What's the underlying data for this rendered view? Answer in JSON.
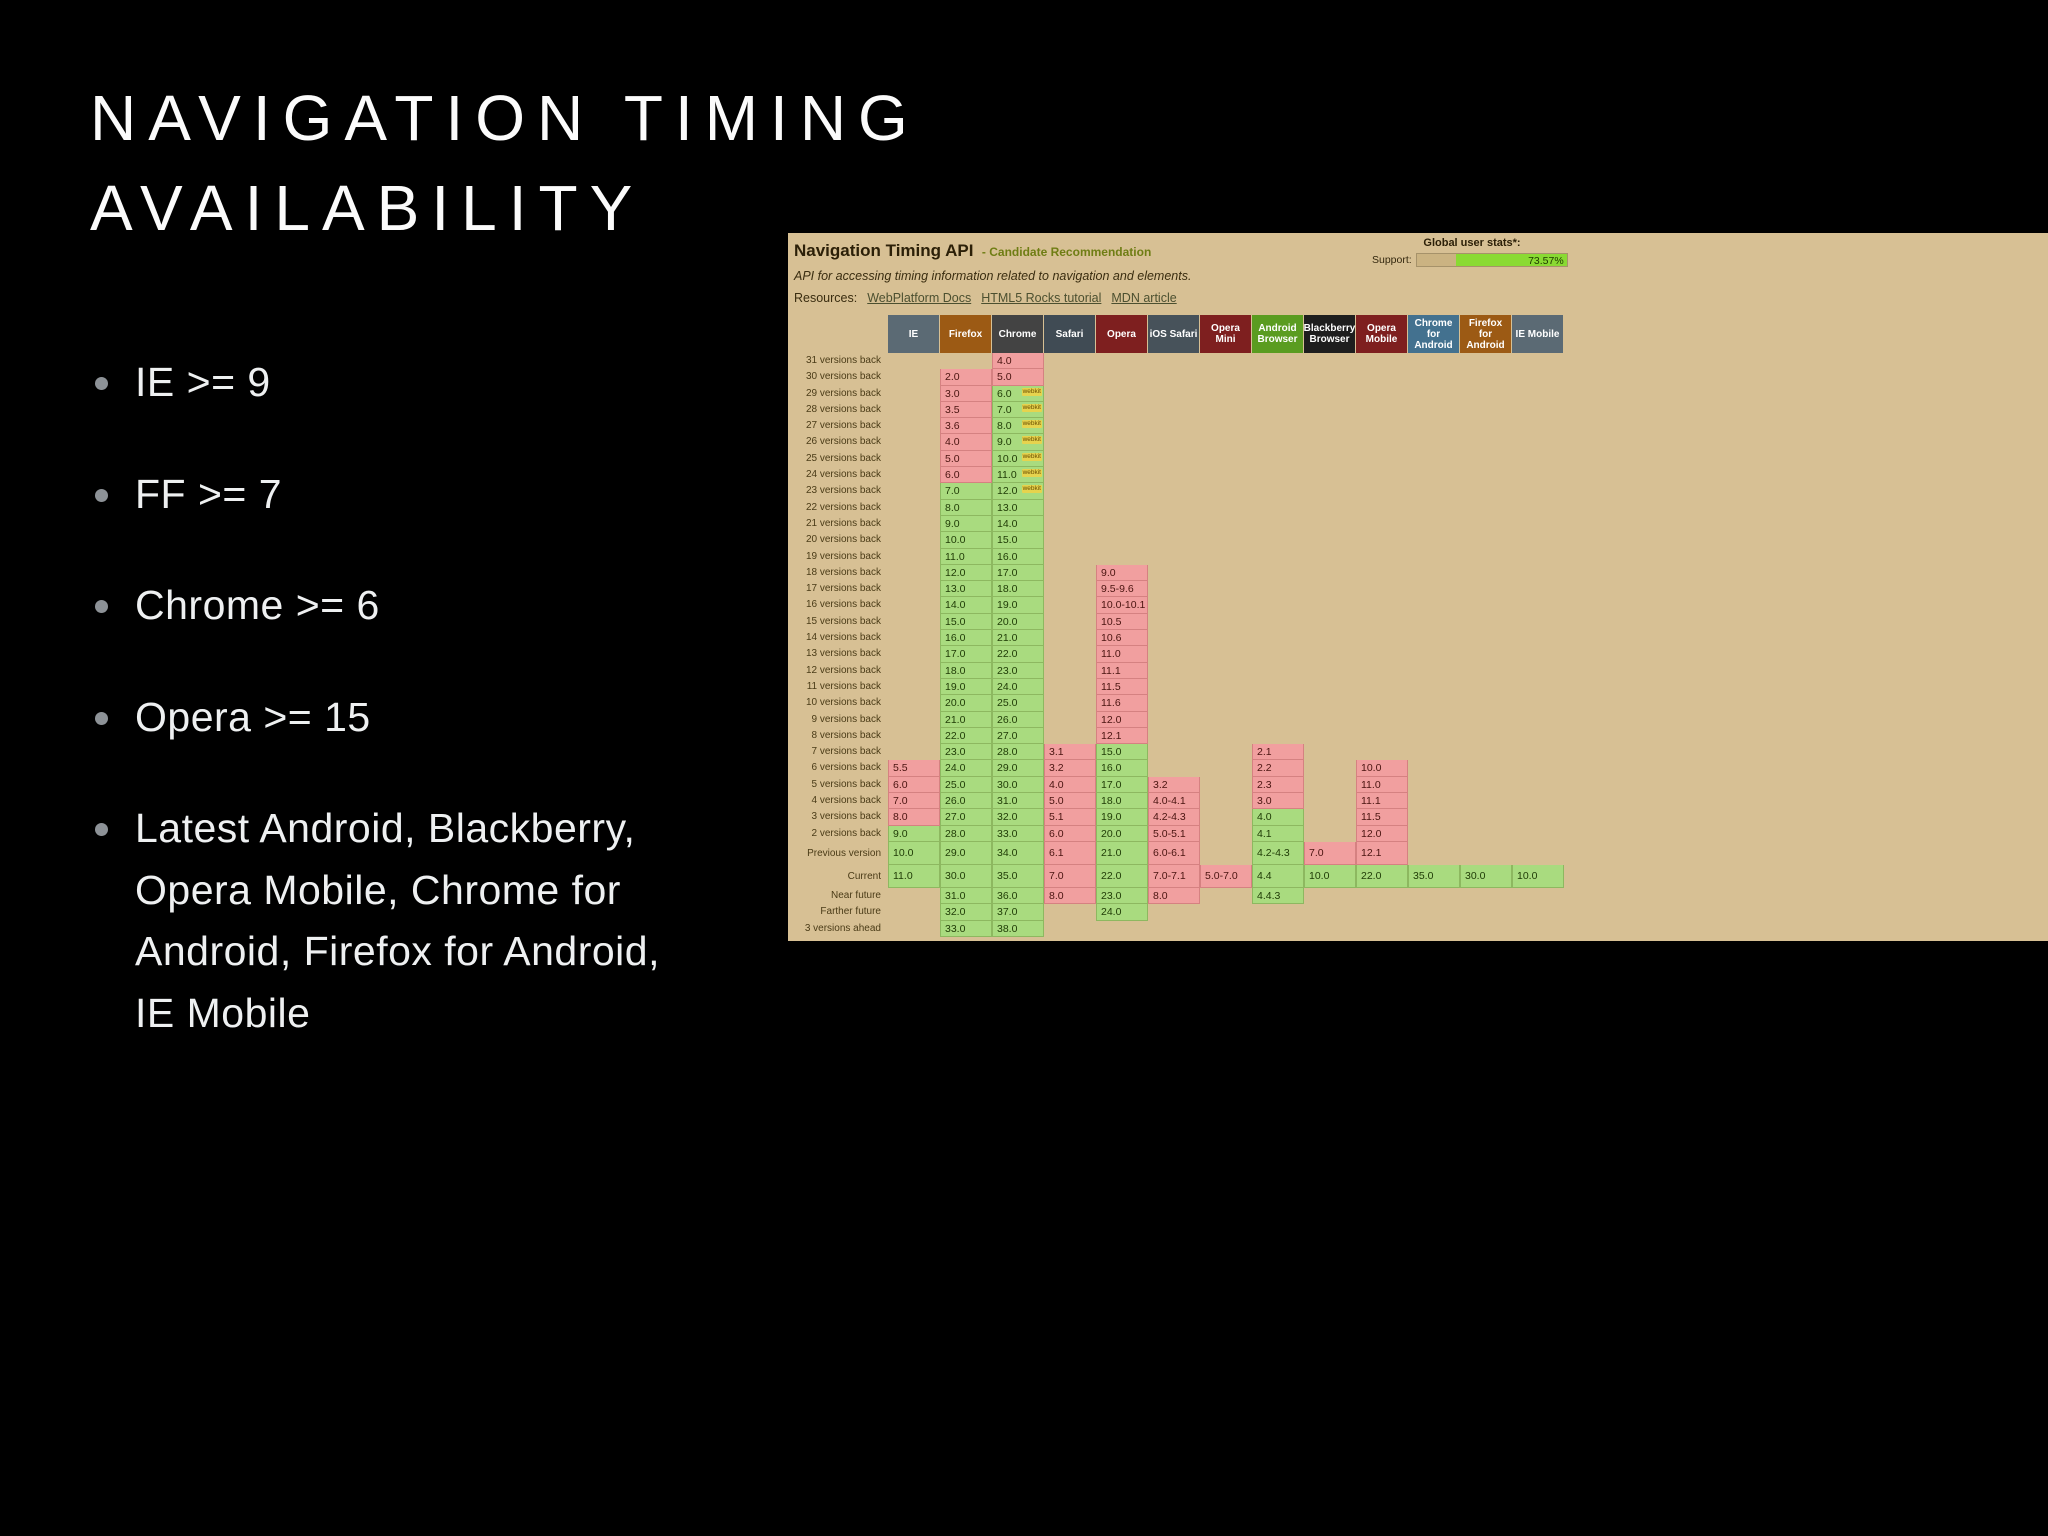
{
  "slide": {
    "title": "NAVIGATION TIMING AVAILABILITY",
    "bullets": [
      "IE >= 9",
      "FF >= 7",
      "Chrome >= 6",
      "Opera >= 15",
      "Latest Android, Blackberry, Opera Mobile, Chrome for Android, Firefox for Android, IE Mobile"
    ]
  },
  "caniuse": {
    "title": "Navigation Timing API",
    "status": "- Candidate Recommendation",
    "description": "API for accessing timing information related to navigation and elements.",
    "resources_label": "Resources:",
    "resources": [
      "WebPlatform Docs",
      "HTML5 Rocks tutorial",
      "MDN article"
    ],
    "stats": {
      "label": "Global user stats*:",
      "support_label": "Support:",
      "support_value": "73.57%",
      "support_percent": 73.57
    },
    "colors": {
      "panel_bg": "#d7c094",
      "supported": "#a9db7f",
      "unsupported": "#f19f9f",
      "support_bar": "#8ada33"
    },
    "columns": [
      {
        "label": "IE",
        "color": "#5b6a74"
      },
      {
        "label": "Firefox",
        "color": "#9c5a14"
      },
      {
        "label": "Chrome",
        "color": "#434343"
      },
      {
        "label": "Safari",
        "color": "#404b54"
      },
      {
        "label": "Opera",
        "color": "#7e1f1f"
      },
      {
        "label": "iOS Safari",
        "color": "#47525a"
      },
      {
        "label": "Opera Mini",
        "color": "#7e1f1f"
      },
      {
        "label": "Android Browser",
        "color": "#5a9c20"
      },
      {
        "label": "Blackberry Browser",
        "color": "#1e1e1e"
      },
      {
        "label": "Opera Mobile",
        "color": "#7e1f1f"
      },
      {
        "label": "Chrome for Android",
        "color": "#43718f"
      },
      {
        "label": "Firefox for Android",
        "color": "#9c5a14"
      },
      {
        "label": "IE Mobile",
        "color": "#5b6a74"
      }
    ],
    "rows": [
      {
        "label": "31 versions back",
        "cells": [
          [
            2,
            "4.0",
            "n"
          ]
        ]
      },
      {
        "label": "30 versions back",
        "cells": [
          [
            1,
            "2.0",
            "n"
          ],
          [
            2,
            "5.0",
            "n"
          ]
        ]
      },
      {
        "label": "29 versions back",
        "cells": [
          [
            1,
            "3.0",
            "n"
          ],
          [
            2,
            "6.0",
            "y",
            "webkit"
          ]
        ]
      },
      {
        "label": "28 versions back",
        "cells": [
          [
            1,
            "3.5",
            "n"
          ],
          [
            2,
            "7.0",
            "y",
            "webkit"
          ]
        ]
      },
      {
        "label": "27 versions back",
        "cells": [
          [
            1,
            "3.6",
            "n"
          ],
          [
            2,
            "8.0",
            "y",
            "webkit"
          ]
        ]
      },
      {
        "label": "26 versions back",
        "cells": [
          [
            1,
            "4.0",
            "n"
          ],
          [
            2,
            "9.0",
            "y",
            "webkit"
          ]
        ]
      },
      {
        "label": "25 versions back",
        "cells": [
          [
            1,
            "5.0",
            "n"
          ],
          [
            2,
            "10.0",
            "y",
            "webkit"
          ]
        ]
      },
      {
        "label": "24 versions back",
        "cells": [
          [
            1,
            "6.0",
            "n"
          ],
          [
            2,
            "11.0",
            "y",
            "webkit"
          ]
        ]
      },
      {
        "label": "23 versions back",
        "cells": [
          [
            1,
            "7.0",
            "y"
          ],
          [
            2,
            "12.0",
            "y",
            "webkit"
          ]
        ]
      },
      {
        "label": "22 versions back",
        "cells": [
          [
            1,
            "8.0",
            "y"
          ],
          [
            2,
            "13.0",
            "y"
          ]
        ]
      },
      {
        "label": "21 versions back",
        "cells": [
          [
            1,
            "9.0",
            "y"
          ],
          [
            2,
            "14.0",
            "y"
          ]
        ]
      },
      {
        "label": "20 versions back",
        "cells": [
          [
            1,
            "10.0",
            "y"
          ],
          [
            2,
            "15.0",
            "y"
          ]
        ]
      },
      {
        "label": "19 versions back",
        "cells": [
          [
            1,
            "11.0",
            "y"
          ],
          [
            2,
            "16.0",
            "y"
          ]
        ]
      },
      {
        "label": "18 versions back",
        "cells": [
          [
            1,
            "12.0",
            "y"
          ],
          [
            2,
            "17.0",
            "y"
          ],
          [
            4,
            "9.0",
            "n"
          ]
        ]
      },
      {
        "label": "17 versions back",
        "cells": [
          [
            1,
            "13.0",
            "y"
          ],
          [
            2,
            "18.0",
            "y"
          ],
          [
            4,
            "9.5-9.6",
            "n"
          ]
        ]
      },
      {
        "label": "16 versions back",
        "cells": [
          [
            1,
            "14.0",
            "y"
          ],
          [
            2,
            "19.0",
            "y"
          ],
          [
            4,
            "10.0-10.1",
            "n"
          ]
        ]
      },
      {
        "label": "15 versions back",
        "cells": [
          [
            1,
            "15.0",
            "y"
          ],
          [
            2,
            "20.0",
            "y"
          ],
          [
            4,
            "10.5",
            "n"
          ]
        ]
      },
      {
        "label": "14 versions back",
        "cells": [
          [
            1,
            "16.0",
            "y"
          ],
          [
            2,
            "21.0",
            "y"
          ],
          [
            4,
            "10.6",
            "n"
          ]
        ]
      },
      {
        "label": "13 versions back",
        "cells": [
          [
            1,
            "17.0",
            "y"
          ],
          [
            2,
            "22.0",
            "y"
          ],
          [
            4,
            "11.0",
            "n"
          ]
        ]
      },
      {
        "label": "12 versions back",
        "cells": [
          [
            1,
            "18.0",
            "y"
          ],
          [
            2,
            "23.0",
            "y"
          ],
          [
            4,
            "11.1",
            "n"
          ]
        ]
      },
      {
        "label": "11 versions back",
        "cells": [
          [
            1,
            "19.0",
            "y"
          ],
          [
            2,
            "24.0",
            "y"
          ],
          [
            4,
            "11.5",
            "n"
          ]
        ]
      },
      {
        "label": "10 versions back",
        "cells": [
          [
            1,
            "20.0",
            "y"
          ],
          [
            2,
            "25.0",
            "y"
          ],
          [
            4,
            "11.6",
            "n"
          ]
        ]
      },
      {
        "label": "9 versions back",
        "cells": [
          [
            1,
            "21.0",
            "y"
          ],
          [
            2,
            "26.0",
            "y"
          ],
          [
            4,
            "12.0",
            "n"
          ]
        ]
      },
      {
        "label": "8 versions back",
        "cells": [
          [
            1,
            "22.0",
            "y"
          ],
          [
            2,
            "27.0",
            "y"
          ],
          [
            4,
            "12.1",
            "n"
          ]
        ]
      },
      {
        "label": "7 versions back",
        "cells": [
          [
            1,
            "23.0",
            "y"
          ],
          [
            2,
            "28.0",
            "y"
          ],
          [
            3,
            "3.1",
            "n"
          ],
          [
            4,
            "15.0",
            "y"
          ],
          [
            7,
            "2.1",
            "n"
          ]
        ]
      },
      {
        "label": "6 versions back",
        "cells": [
          [
            0,
            "5.5",
            "n"
          ],
          [
            1,
            "24.0",
            "y"
          ],
          [
            2,
            "29.0",
            "y"
          ],
          [
            3,
            "3.2",
            "n"
          ],
          [
            4,
            "16.0",
            "y"
          ],
          [
            7,
            "2.2",
            "n"
          ],
          [
            9,
            "10.0",
            "n"
          ]
        ]
      },
      {
        "label": "5 versions back",
        "cells": [
          [
            0,
            "6.0",
            "n"
          ],
          [
            1,
            "25.0",
            "y"
          ],
          [
            2,
            "30.0",
            "y"
          ],
          [
            3,
            "4.0",
            "n"
          ],
          [
            4,
            "17.0",
            "y"
          ],
          [
            5,
            "3.2",
            "n"
          ],
          [
            7,
            "2.3",
            "n"
          ],
          [
            9,
            "11.0",
            "n"
          ]
        ]
      },
      {
        "label": "4 versions back",
        "cells": [
          [
            0,
            "7.0",
            "n"
          ],
          [
            1,
            "26.0",
            "y"
          ],
          [
            2,
            "31.0",
            "y"
          ],
          [
            3,
            "5.0",
            "n"
          ],
          [
            4,
            "18.0",
            "y"
          ],
          [
            5,
            "4.0-4.1",
            "n"
          ],
          [
            7,
            "3.0",
            "n"
          ],
          [
            9,
            "11.1",
            "n"
          ]
        ]
      },
      {
        "label": "3 versions back",
        "cells": [
          [
            0,
            "8.0",
            "n"
          ],
          [
            1,
            "27.0",
            "y"
          ],
          [
            2,
            "32.0",
            "y"
          ],
          [
            3,
            "5.1",
            "n"
          ],
          [
            4,
            "19.0",
            "y"
          ],
          [
            5,
            "4.2-4.3",
            "n"
          ],
          [
            7,
            "4.0",
            "y"
          ],
          [
            9,
            "11.5",
            "n"
          ]
        ]
      },
      {
        "label": "2 versions back",
        "cells": [
          [
            0,
            "9.0",
            "y"
          ],
          [
            1,
            "28.0",
            "y"
          ],
          [
            2,
            "33.0",
            "y"
          ],
          [
            3,
            "6.0",
            "n"
          ],
          [
            4,
            "20.0",
            "y"
          ],
          [
            5,
            "5.0-5.1",
            "n"
          ],
          [
            7,
            "4.1",
            "y"
          ],
          [
            9,
            "12.0",
            "n"
          ]
        ]
      },
      {
        "label": "Previous version",
        "tall": true,
        "cells": [
          [
            0,
            "10.0",
            "y"
          ],
          [
            1,
            "29.0",
            "y"
          ],
          [
            2,
            "34.0",
            "y"
          ],
          [
            3,
            "6.1",
            "n"
          ],
          [
            4,
            "21.0",
            "y"
          ],
          [
            5,
            "6.0-6.1",
            "n"
          ],
          [
            7,
            "4.2-4.3",
            "y"
          ],
          [
            8,
            "7.0",
            "n"
          ],
          [
            9,
            "12.1",
            "n"
          ]
        ]
      },
      {
        "label": "Current",
        "tall": true,
        "cells": [
          [
            0,
            "11.0",
            "y"
          ],
          [
            1,
            "30.0",
            "y"
          ],
          [
            2,
            "35.0",
            "y"
          ],
          [
            3,
            "7.0",
            "n"
          ],
          [
            4,
            "22.0",
            "y"
          ],
          [
            5,
            "7.0-7.1",
            "n"
          ],
          [
            6,
            "5.0-7.0",
            "n"
          ],
          [
            7,
            "4.4",
            "y"
          ],
          [
            8,
            "10.0",
            "y"
          ],
          [
            9,
            "22.0",
            "y"
          ],
          [
            10,
            "35.0",
            "y"
          ],
          [
            11,
            "30.0",
            "y"
          ],
          [
            12,
            "10.0",
            "y"
          ]
        ]
      },
      {
        "label": "Near future",
        "cells": [
          [
            1,
            "31.0",
            "y"
          ],
          [
            2,
            "36.0",
            "y"
          ],
          [
            3,
            "8.0",
            "n"
          ],
          [
            4,
            "23.0",
            "y"
          ],
          [
            5,
            "8.0",
            "n"
          ],
          [
            7,
            "4.4.3",
            "y"
          ]
        ]
      },
      {
        "label": "Farther future",
        "cells": [
          [
            1,
            "32.0",
            "y"
          ],
          [
            2,
            "37.0",
            "y"
          ],
          [
            4,
            "24.0",
            "y"
          ]
        ]
      },
      {
        "label": "3 versions ahead",
        "cells": [
          [
            1,
            "33.0",
            "y"
          ],
          [
            2,
            "38.0",
            "y"
          ]
        ]
      }
    ]
  }
}
